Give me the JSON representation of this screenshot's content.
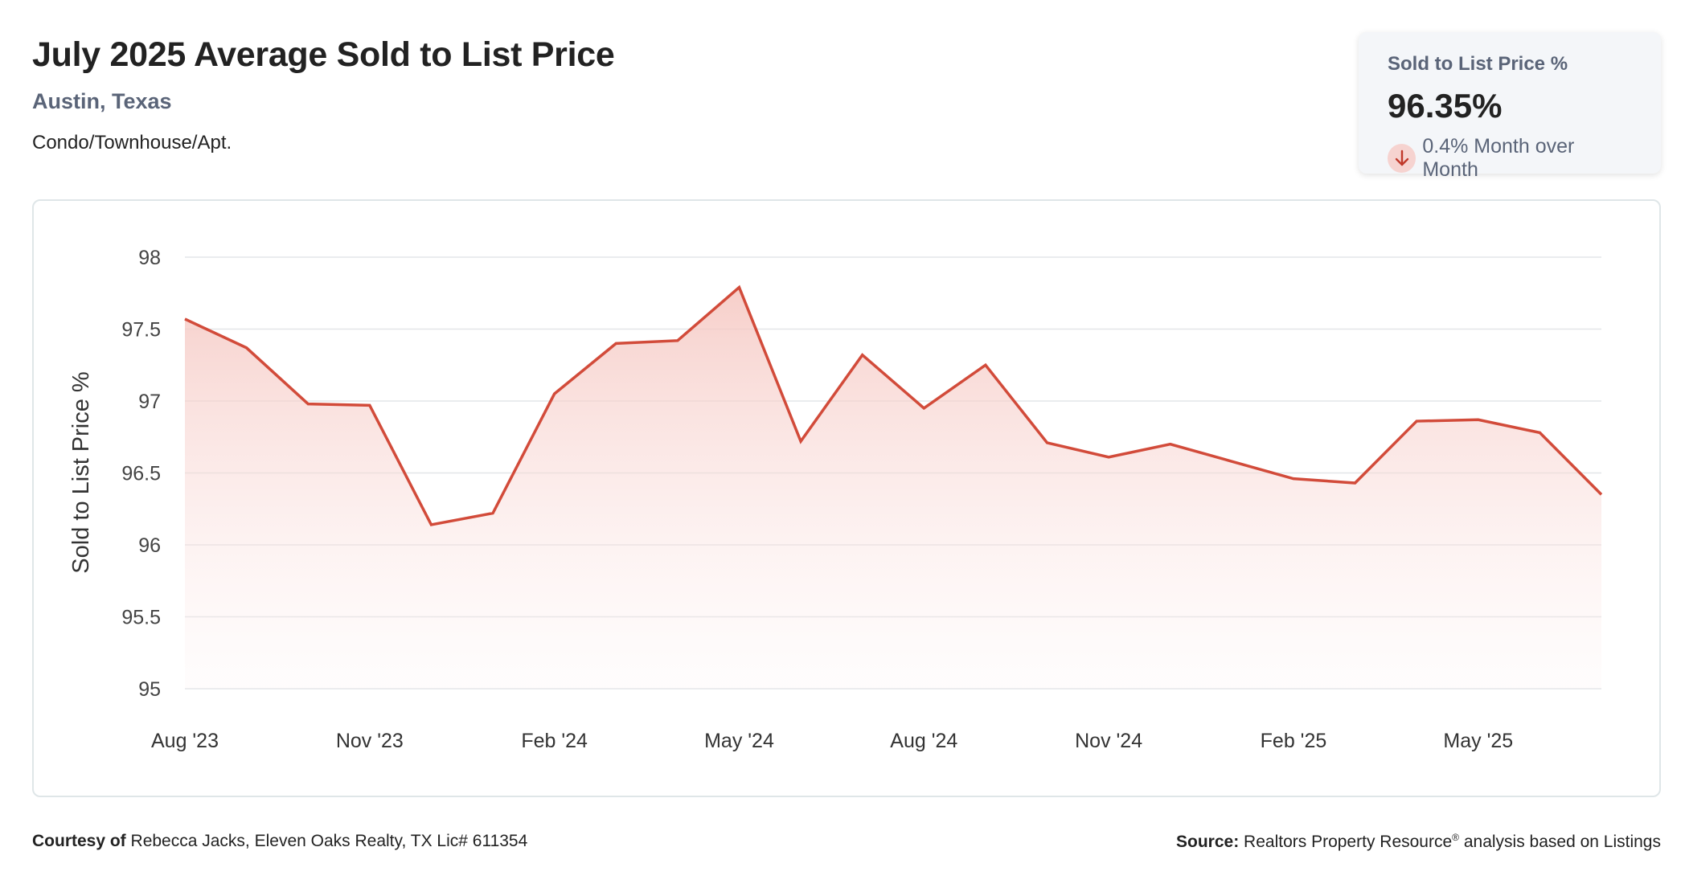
{
  "header": {
    "title": "July 2025 Average Sold to List Price",
    "location": "Austin, Texas",
    "property_type": "Condo/Townhouse/Apt."
  },
  "kpi": {
    "label": "Sold to List Price %",
    "value": "96.35%",
    "change_text": "0.4% Month over Month",
    "direction": "down",
    "icon": "arrow-down-icon"
  },
  "colors": {
    "line": "#d24b3a",
    "fill_top": "#f5c6c0",
    "kpi_arrow_bg": "#f6d3d0",
    "subtitle": "#5a6478"
  },
  "chart_data": {
    "type": "area",
    "title": "",
    "xlabel": "",
    "ylabel": "Sold to List Price %",
    "ylim": [
      95,
      98
    ],
    "y_ticks": [
      "98",
      "97.5",
      "97",
      "96.5",
      "96",
      "95.5",
      "95"
    ],
    "x_tick_labels": [
      "Aug '23",
      "Nov '23",
      "Feb '24",
      "May '24",
      "Aug '24",
      "Nov '24",
      "Feb '25",
      "May '25"
    ],
    "x": [
      "2023-08",
      "2023-09",
      "2023-10",
      "2023-11",
      "2023-12",
      "2024-01",
      "2024-02",
      "2024-03",
      "2024-04",
      "2024-05",
      "2024-06",
      "2024-07",
      "2024-08",
      "2024-09",
      "2024-10",
      "2024-11",
      "2024-12",
      "2025-01",
      "2025-02",
      "2025-03",
      "2025-04",
      "2025-05",
      "2025-06",
      "2025-07"
    ],
    "values": [
      97.57,
      97.37,
      96.98,
      96.97,
      96.14,
      96.22,
      97.05,
      97.4,
      97.42,
      97.79,
      96.72,
      97.32,
      96.95,
      97.25,
      96.71,
      96.61,
      96.7,
      96.58,
      96.46,
      96.43,
      96.86,
      96.87,
      96.78,
      96.35
    ],
    "grid": true,
    "legend": "none"
  },
  "footer": {
    "courtesy_label": "Courtesy of",
    "courtesy_text": "Rebecca Jacks, Eleven Oaks Realty, TX Lic# 611354",
    "source_label": "Source:",
    "source_text_1": "Realtors Property Resource",
    "source_reg": "®",
    "source_text_2": " analysis based on Listings"
  }
}
